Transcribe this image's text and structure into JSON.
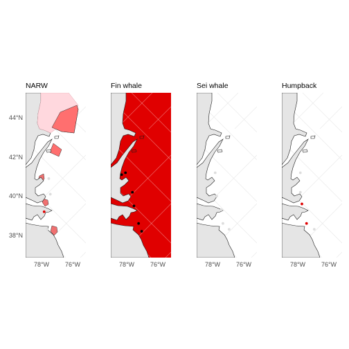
{
  "figure": {
    "x_ticks": [
      "78°W",
      "76°W"
    ],
    "y_ticks": [
      "44°N",
      "42°N",
      "40°N",
      "38°N"
    ],
    "panels": [
      {
        "id": "narw",
        "title": "NARW",
        "y_ticks_shown": true,
        "ocean_fill": "#ffffff",
        "zones": [
          {
            "name": "north-zone-pale",
            "color": "#ffd8de"
          },
          {
            "name": "north-zone-red",
            "color": "#ff6f6f"
          },
          {
            "name": "gulf-of-maine-box",
            "color": "#ff6f6f"
          },
          {
            "name": "long-island-blob",
            "color": "#f07070"
          },
          {
            "name": "new-jersey-blob",
            "color": "#f07070"
          },
          {
            "name": "delmarva-blob",
            "color": "#f07070"
          }
        ],
        "points": [
          {
            "lon": -77.8,
            "lat": 39.2,
            "color": "#e00000"
          },
          {
            "lon": -77.4,
            "lat": 40.1,
            "color": "#dddddd"
          },
          {
            "lon": -77.6,
            "lat": 38.3,
            "color": "#dddddd"
          },
          {
            "lon": -77.5,
            "lat": 40.9,
            "color": "#dddddd"
          }
        ]
      },
      {
        "id": "fin",
        "title": "Fin whale",
        "y_ticks_shown": false,
        "ocean_fill": "#e00000",
        "zones": [],
        "points": [
          {
            "lon": -78.3,
            "lat": 41.1,
            "color": "#000000"
          },
          {
            "lon": -78.05,
            "lat": 41.2,
            "color": "#000000"
          },
          {
            "lon": -77.6,
            "lat": 40.2,
            "color": "#000000"
          },
          {
            "lon": -77.5,
            "lat": 39.5,
            "color": "#000000"
          },
          {
            "lon": -77.2,
            "lat": 38.6,
            "color": "#000000"
          },
          {
            "lon": -77.0,
            "lat": 38.2,
            "color": "#000000"
          }
        ]
      },
      {
        "id": "sei",
        "title": "Sei whale",
        "y_ticks_shown": false,
        "ocean_fill": "#ffffff",
        "zones": [],
        "points": [
          {
            "lon": -77.8,
            "lat": 41.2,
            "color": "#dddddd"
          },
          {
            "lon": -77.7,
            "lat": 40.0,
            "color": "#dddddd"
          },
          {
            "lon": -77.4,
            "lat": 39.3,
            "color": "#dddddd"
          },
          {
            "lon": -76.9,
            "lat": 38.3,
            "color": "#dddddd"
          },
          {
            "lon": -77.3,
            "lat": 38.6,
            "color": "#dddddd"
          }
        ]
      },
      {
        "id": "humpback",
        "title": "Humpback",
        "y_ticks_shown": false,
        "ocean_fill": "#ffffff",
        "zones": [],
        "points": [
          {
            "lon": -77.7,
            "lat": 39.6,
            "color": "#e00000"
          },
          {
            "lon": -77.4,
            "lat": 38.6,
            "color": "#e00000"
          },
          {
            "lon": -77.8,
            "lat": 41.2,
            "color": "#dddddd"
          },
          {
            "lon": -77.8,
            "lat": 40.2,
            "color": "#dddddd"
          },
          {
            "lon": -76.9,
            "lat": 38.3,
            "color": "#dddddd"
          }
        ]
      }
    ]
  }
}
